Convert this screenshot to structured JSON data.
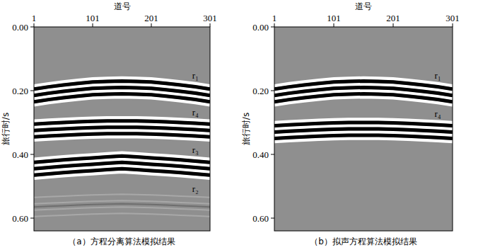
{
  "chart_data": [
    {
      "type": "seismic",
      "title": "（a）方程分离算法模拟结果",
      "x_label": "道号",
      "y_label": "旅行时/s",
      "xlim": [
        1,
        301
      ],
      "xticks": [
        1,
        101,
        201,
        301
      ],
      "ylim": [
        0,
        0.64
      ],
      "yticks": [
        {
          "value": 0,
          "label": "0.00"
        },
        {
          "value": 0.2,
          "label": "0.20"
        },
        {
          "value": 0.4,
          "label": "0.40"
        },
        {
          "value": 0.6,
          "label": "0.60"
        }
      ],
      "x": [
        1,
        26,
        51,
        76,
        101,
        126,
        151,
        176,
        201,
        226,
        251,
        276,
        301
      ],
      "series": [
        {
          "name": "r₁",
          "color": "#000000",
          "values": [
            0.215,
            0.208,
            0.202,
            0.197,
            0.193,
            0.191,
            0.19,
            0.191,
            0.193,
            0.197,
            0.202,
            0.208,
            0.215
          ]
        },
        {
          "name": "r₄",
          "color": "#000000",
          "values": [
            0.325,
            0.322,
            0.32,
            0.318,
            0.316,
            0.315,
            0.315,
            0.315,
            0.316,
            0.318,
            0.32,
            0.322,
            0.325
          ]
        },
        {
          "name": "r₃",
          "color": "#000000",
          "values": [
            0.445,
            0.441,
            0.437,
            0.434,
            0.431,
            0.428,
            0.425,
            0.428,
            0.431,
            0.434,
            0.437,
            0.441,
            0.445
          ]
        },
        {
          "name": "r₂",
          "color": "#6e6e6e",
          "values": [
            0.565,
            0.563,
            0.561,
            0.559,
            0.557,
            0.556,
            0.555,
            0.556,
            0.557,
            0.559,
            0.561,
            0.563,
            0.565
          ]
        }
      ]
    },
    {
      "type": "seismic",
      "title": "（b）拟声方程算法模拟结果",
      "x_label": "道号",
      "y_label": "旅行时/s",
      "xlim": [
        1,
        301
      ],
      "xticks": [
        1,
        101,
        201,
        301
      ],
      "ylim": [
        0,
        0.64
      ],
      "yticks": [
        {
          "value": 0,
          "label": "0.00"
        },
        {
          "value": 0.2,
          "label": "0.20"
        },
        {
          "value": 0.4,
          "label": "0.40"
        },
        {
          "value": 0.6,
          "label": "0.60"
        }
      ],
      "x": [
        1,
        26,
        51,
        76,
        101,
        126,
        151,
        176,
        201,
        226,
        251,
        276,
        301
      ],
      "series": [
        {
          "name": "r₁",
          "color": "#000000",
          "values": [
            0.215,
            0.208,
            0.202,
            0.197,
            0.193,
            0.191,
            0.19,
            0.191,
            0.193,
            0.197,
            0.202,
            0.208,
            0.215
          ]
        },
        {
          "name": "r₄",
          "color": "#000000",
          "values": [
            0.33,
            0.327,
            0.325,
            0.323,
            0.321,
            0.32,
            0.32,
            0.32,
            0.321,
            0.323,
            0.325,
            0.327,
            0.33
          ]
        }
      ]
    }
  ]
}
